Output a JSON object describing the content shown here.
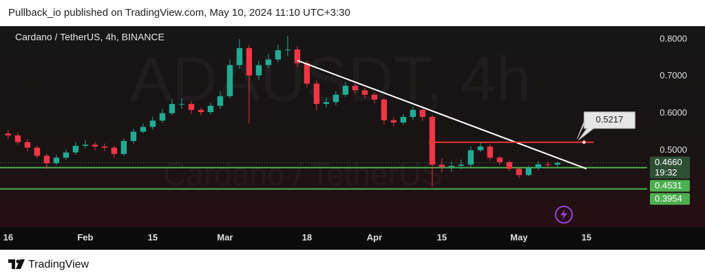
{
  "header": {
    "text": "Pullback_io published on TradingView.com, May 10, 2024 11:10 UTC+3:30"
  },
  "footer": {
    "brand": "TradingView"
  },
  "chart_data": {
    "type": "candlestick",
    "title": "Cardano / TetherUS, 4h, BINANCE",
    "watermark": [
      "ADAUSDT, 4h",
      "Cardano / TetherUS"
    ],
    "up_color": "#22ab94",
    "down_color": "#f23645",
    "x": [
      0,
      2,
      4,
      6,
      8,
      10,
      12,
      14,
      16,
      18,
      20,
      22,
      24,
      26,
      28,
      30,
      32,
      34,
      36,
      38,
      40,
      42,
      44,
      46,
      48,
      50,
      52,
      54,
      56,
      58,
      60,
      62,
      64,
      66,
      68,
      70,
      72,
      74,
      76,
      78,
      80,
      82,
      84,
      86,
      88,
      90,
      92,
      94,
      96,
      98,
      100,
      102,
      104,
      106,
      108,
      110,
      112,
      114
    ],
    "open": [
      0.545,
      0.54,
      0.522,
      0.507,
      0.485,
      0.465,
      0.48,
      0.494,
      0.512,
      0.515,
      0.51,
      0.507,
      0.49,
      0.525,
      0.55,
      0.563,
      0.58,
      0.6,
      0.625,
      0.625,
      0.609,
      0.603,
      0.62,
      0.646,
      0.73,
      0.776,
      0.702,
      0.73,
      0.745,
      0.77,
      0.772,
      0.735,
      0.68,
      0.625,
      0.63,
      0.65,
      0.674,
      0.662,
      0.65,
      0.637,
      0.581,
      0.575,
      0.59,
      0.609,
      0.59,
      0.461,
      0.455,
      0.458,
      0.461,
      0.5,
      0.51,
      0.48,
      0.468,
      0.45,
      0.433,
      0.452,
      0.462,
      0.461
    ],
    "high": [
      0.555,
      0.548,
      0.53,
      0.512,
      0.49,
      0.488,
      0.502,
      0.522,
      0.528,
      0.522,
      0.518,
      0.512,
      0.532,
      0.558,
      0.572,
      0.59,
      0.612,
      0.638,
      0.64,
      0.632,
      0.615,
      0.628,
      0.66,
      0.745,
      0.8,
      0.785,
      0.742,
      0.76,
      0.785,
      0.809,
      0.78,
      0.742,
      0.688,
      0.642,
      0.66,
      0.685,
      0.68,
      0.668,
      0.656,
      0.642,
      0.59,
      0.598,
      0.618,
      0.612,
      0.595,
      0.478,
      0.47,
      0.475,
      0.51,
      0.522,
      0.515,
      0.485,
      0.472,
      0.455,
      0.458,
      0.47,
      0.47,
      0.47
    ],
    "low": [
      0.53,
      0.515,
      0.498,
      0.478,
      0.45,
      0.46,
      0.474,
      0.488,
      0.505,
      0.5,
      0.498,
      0.48,
      0.485,
      0.518,
      0.545,
      0.556,
      0.574,
      0.595,
      0.612,
      0.598,
      0.594,
      0.597,
      0.612,
      0.64,
      0.72,
      0.572,
      0.69,
      0.722,
      0.738,
      0.755,
      0.725,
      0.67,
      0.608,
      0.615,
      0.622,
      0.644,
      0.652,
      0.64,
      0.628,
      0.57,
      0.565,
      0.568,
      0.582,
      0.58,
      0.402,
      0.44,
      0.442,
      0.448,
      0.455,
      0.495,
      0.472,
      0.46,
      0.444,
      0.425,
      0.43,
      0.446,
      0.452,
      0.455
    ],
    "close": [
      0.54,
      0.522,
      0.507,
      0.485,
      0.465,
      0.48,
      0.494,
      0.512,
      0.515,
      0.51,
      0.507,
      0.49,
      0.525,
      0.55,
      0.563,
      0.58,
      0.6,
      0.625,
      0.625,
      0.609,
      0.603,
      0.62,
      0.646,
      0.73,
      0.776,
      0.702,
      0.73,
      0.745,
      0.77,
      0.772,
      0.735,
      0.68,
      0.625,
      0.63,
      0.65,
      0.674,
      0.662,
      0.65,
      0.637,
      0.581,
      0.575,
      0.59,
      0.609,
      0.59,
      0.461,
      0.455,
      0.458,
      0.461,
      0.5,
      0.51,
      0.48,
      0.468,
      0.45,
      0.433,
      0.452,
      0.462,
      0.461,
      0.466
    ],
    "xlim": [
      -1.7,
      132.6
    ],
    "xticks": [
      {
        "value": 0,
        "label": "16"
      },
      {
        "value": 16,
        "label": "Feb"
      },
      {
        "value": 30,
        "label": "15"
      },
      {
        "value": 45,
        "label": "Mar"
      },
      {
        "value": 62,
        "label": "18"
      },
      {
        "value": 76,
        "label": "Apr"
      },
      {
        "value": 90,
        "label": "15"
      },
      {
        "value": 106,
        "label": "May"
      },
      {
        "value": 120,
        "label": "15"
      }
    ],
    "ylim": [
      0.2926,
      0.8352
    ],
    "yticks": [
      {
        "value": 0.8,
        "label": "0.8000"
      },
      {
        "value": 0.7,
        "label": "0.7000"
      },
      {
        "value": 0.6,
        "label": "0.6000"
      },
      {
        "value": 0.5,
        "label": "0.5000"
      }
    ],
    "grid": false,
    "trendline": {
      "x": [
        60,
        120
      ],
      "y": [
        0.7426,
        0.45
      ],
      "color": "#ffffff"
    },
    "resistance": {
      "x": [
        87.5,
        121.5
      ],
      "value": 0.5217,
      "label": "0.5217",
      "color": "#e53935"
    },
    "current_price": {
      "value": 0.466,
      "label": "0.4660",
      "countdown": "19:32",
      "color": "#2f4f35"
    },
    "levels": [
      {
        "value": 0.4531,
        "label": "0.4531",
        "color": "#4caf50"
      },
      {
        "value": 0.3954,
        "label": "0.3954",
        "color": "#4caf50"
      }
    ]
  }
}
